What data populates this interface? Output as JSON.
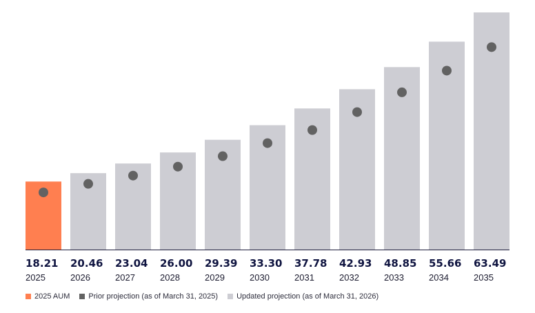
{
  "chart_data": {
    "type": "bar",
    "categories": [
      "2025",
      "2026",
      "2027",
      "2028",
      "2029",
      "2030",
      "2031",
      "2032",
      "2033",
      "2034",
      "2035"
    ],
    "series": [
      {
        "name": "2025 AUM",
        "values": [
          18.21,
          null,
          null,
          null,
          null,
          null,
          null,
          null,
          null,
          null,
          null
        ]
      },
      {
        "name": "Updated projection (as of March 31, 2026)",
        "values": [
          null,
          20.46,
          23.04,
          26.0,
          29.39,
          33.3,
          37.78,
          42.93,
          48.85,
          55.66,
          63.49
        ]
      },
      {
        "name": "Prior projection (as of March 31, 2025)",
        "values": [
          15.3,
          17.6,
          19.8,
          22.2,
          25.0,
          28.5,
          32.0,
          36.8,
          42.1,
          47.9,
          54.2
        ]
      }
    ],
    "value_labels": [
      "18.21",
      "20.46",
      "23.04",
      "26.00",
      "29.39",
      "33.30",
      "37.78",
      "42.93",
      "48.85",
      "55.66",
      "63.49"
    ],
    "ylim": [
      0,
      63.49
    ],
    "grid": false,
    "legend_position": "bottom-left",
    "colors": {
      "aum": "#ff7f50",
      "updated": "#cdcdd3",
      "prior": "#626262",
      "axis": "#1b1b3a",
      "label": "#0f1440"
    }
  },
  "legend": [
    {
      "label": "2025 AUM",
      "color": "#ff7f50"
    },
    {
      "label": "Prior projection (as of March 31, 2025)",
      "color": "#626262"
    },
    {
      "label": "Updated projection (as of March 31, 2026)",
      "color": "#cdcdd3"
    }
  ]
}
